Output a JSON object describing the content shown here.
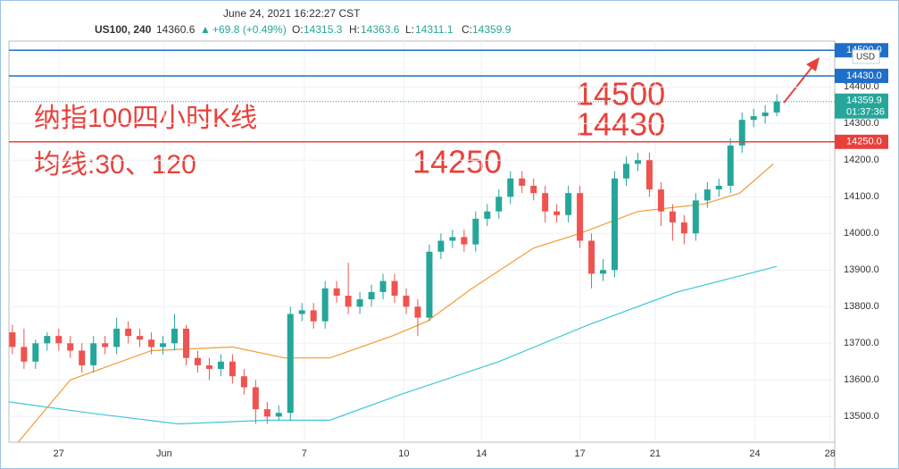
{
  "header": {
    "datetime": "June 24, 2021 16:22:27 CST",
    "symbol": "US100, 240",
    "last": "14360.6",
    "arrow": "▲",
    "change": "+69.8 (+0.49%)",
    "o_label": "O:",
    "o_value": "14315.3",
    "h_label": "H:",
    "h_value": "14363.6",
    "l_label": "L:",
    "l_value": "14311.1",
    "c_label": "C:",
    "c_value": "14359.9"
  },
  "chart_data": {
    "type": "candlestick",
    "up_color": "#26a69a",
    "down_color": "#ef5350",
    "annotations": [
      "纳指100四小时K线",
      "均线:30、120",
      "14250",
      "14500",
      "14430"
    ],
    "currency": "USD",
    "xlim": [
      -0.3,
      71
    ],
    "ylim": [
      13430,
      14525
    ],
    "xticks": [
      {
        "value": 4,
        "label": "27"
      },
      {
        "value": 13.1,
        "label": "Jun"
      },
      {
        "value": 25.2,
        "label": "7"
      },
      {
        "value": 33.8,
        "label": "10"
      },
      {
        "value": 40.5,
        "label": "14"
      },
      {
        "value": 49,
        "label": "17"
      },
      {
        "value": 55.5,
        "label": "21"
      },
      {
        "value": 64.1,
        "label": "24"
      },
      {
        "value": 70.6,
        "label": "28"
      }
    ],
    "yticks": [
      {
        "value": 13500,
        "label": "13500.0"
      },
      {
        "value": 13600,
        "label": "13600.0"
      },
      {
        "value": 13700,
        "label": "13700.0"
      },
      {
        "value": 13800,
        "label": "13800.0"
      },
      {
        "value": 13900,
        "label": "13900.0"
      },
      {
        "value": 14000,
        "label": "14000.0"
      },
      {
        "value": 14100,
        "label": "14100.0"
      },
      {
        "value": 14200,
        "label": "14200.0"
      },
      {
        "value": 14300,
        "label": "14300.0"
      },
      {
        "value": 14400,
        "label": "14400.0"
      }
    ],
    "open": [
      13730,
      13690,
      13650,
      13700,
      13720,
      13700,
      13680,
      13640,
      13700,
      13690,
      13740,
      13720,
      13710,
      13690,
      13700,
      13740,
      13660,
      13640,
      13630,
      13650,
      13610,
      13580,
      13520,
      13500,
      13510,
      13780,
      13790,
      13760,
      13850,
      13830,
      13800,
      13820,
      13840,
      13870,
      13830,
      13800,
      13770,
      13950,
      13980,
      13990,
      13970,
      14040,
      14060,
      14100,
      14150,
      14130,
      14110,
      14060,
      14050,
      14110,
      13980,
      13890,
      13900,
      14150,
      14190,
      14200,
      14120,
      14060,
      14030,
      14000,
      14090,
      14120,
      14130,
      14240,
      14310,
      14320,
      14330
    ],
    "high": [
      13750,
      13740,
      13710,
      13730,
      13740,
      13720,
      13700,
      13720,
      13720,
      13770,
      13760,
      13740,
      13730,
      13720,
      13780,
      13750,
      13680,
      13660,
      13670,
      13670,
      13630,
      13600,
      13540,
      13530,
      13800,
      13810,
      13810,
      13870,
      13870,
      13920,
      13840,
      13860,
      13890,
      13890,
      13850,
      13820,
      13970,
      14000,
      14010,
      14010,
      14060,
      14080,
      14120,
      14170,
      14170,
      14150,
      14130,
      14080,
      14130,
      14130,
      14000,
      13930,
      14170,
      14210,
      14220,
      14220,
      14140,
      14080,
      14050,
      14110,
      14140,
      14150,
      14260,
      14330,
      14340,
      14350,
      14380
    ],
    "low": [
      13670,
      13630,
      13630,
      13680,
      13680,
      13660,
      13620,
      13620,
      13670,
      13670,
      13700,
      13690,
      13670,
      13670,
      13680,
      13640,
      13620,
      13600,
      13610,
      13590,
      13560,
      13480,
      13480,
      13490,
      13490,
      13760,
      13740,
      13740,
      13810,
      13780,
      13780,
      13800,
      13820,
      13810,
      13780,
      13720,
      13760,
      13930,
      13960,
      13950,
      13950,
      14020,
      14040,
      14080,
      14110,
      14090,
      14030,
      14030,
      14030,
      13960,
      13850,
      13870,
      13880,
      14130,
      14170,
      14100,
      14020,
      13980,
      13970,
      13980,
      14070,
      14100,
      14110,
      14220,
      14290,
      14300,
      14320
    ],
    "close": [
      13690,
      13650,
      13700,
      13720,
      13700,
      13680,
      13640,
      13700,
      13690,
      13740,
      13720,
      13710,
      13690,
      13700,
      13740,
      13660,
      13640,
      13630,
      13650,
      13610,
      13580,
      13520,
      13500,
      13510,
      13780,
      13790,
      13760,
      13850,
      13830,
      13800,
      13820,
      13840,
      13870,
      13830,
      13800,
      13770,
      13950,
      13980,
      13990,
      13970,
      14040,
      14060,
      14100,
      14150,
      14130,
      14110,
      14060,
      14050,
      14110,
      13980,
      13890,
      13900,
      14150,
      14190,
      14200,
      14120,
      14060,
      14030,
      14000,
      14090,
      14120,
      14130,
      14240,
      14310,
      14320,
      14330,
      14360
    ],
    "lines": [
      {
        "color": "#f39c32",
        "x": [
          0.5,
          5,
          12,
          19,
          23.5,
          27.4,
          32.8,
          35.8,
          39.7,
          45,
          49,
          54,
          59.7,
          62.8,
          65.7
        ],
        "values": [
          13430,
          13600,
          13680,
          13690,
          13660,
          13660,
          13720,
          13760,
          13850,
          13960,
          14000,
          14060,
          14080,
          14110,
          14190
        ]
      },
      {
        "color": "#3fc8d6",
        "x": [
          -0.3,
          6.6,
          14.3,
          22,
          27.4,
          33.5,
          42,
          49.7,
          57.4,
          66
        ],
        "values": [
          13540,
          13510,
          13480,
          13490,
          13490,
          13560,
          13650,
          13750,
          13840,
          13910
        ]
      }
    ],
    "levels": [
      {
        "value": 14500,
        "label": "14500.0",
        "color": "#1e6fc8"
      },
      {
        "value": 14430,
        "label": "14430.0",
        "color": "#1e6fc8"
      },
      {
        "value": 14250,
        "label": "14250.0",
        "color": "#e8413b"
      }
    ],
    "current": {
      "value": 14359.9,
      "label": "14359.9",
      "countdown": "01:37:36",
      "color": "#26a69a"
    }
  }
}
